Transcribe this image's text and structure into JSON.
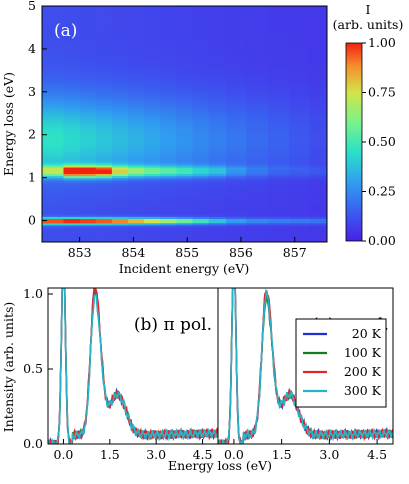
{
  "chart_data": [
    {
      "type": "heatmap",
      "panel_label": "(a)",
      "xlabel": "Incident energy (eV)",
      "ylabel": "Energy loss (eV)",
      "xlim": [
        852.3,
        857.6
      ],
      "ylim": [
        -0.5,
        5
      ],
      "xticks": [
        "853",
        "854",
        "855",
        "856",
        "857"
      ],
      "yticks": [
        "0",
        "1",
        "2",
        "3",
        "4",
        "5"
      ],
      "x_columns": [
        852.55,
        852.85,
        853.15,
        853.45,
        853.75,
        854.05,
        854.35,
        854.65,
        854.95,
        855.25,
        855.55,
        855.9,
        856.3,
        856.7,
        857.1,
        857.45
      ],
      "elastic_peak_intensity": [
        0.95,
        1.0,
        0.98,
        0.95,
        0.9,
        0.82,
        0.75,
        0.65,
        0.55,
        0.45,
        0.35,
        0.25,
        0.2,
        0.18,
        0.17,
        0.16
      ],
      "dd_peak_intensity": [
        0.55,
        1.0,
        1.0,
        0.92,
        0.65,
        0.52,
        0.45,
        0.42,
        0.38,
        0.32,
        0.28,
        0.18,
        0.12,
        0.08,
        0.07,
        0.06
      ],
      "colorbar": {
        "title": "I",
        "subtitle": "(arb. units)",
        "range": [
          0,
          1
        ],
        "ticks": [
          "1.00",
          "0.75",
          "0.50",
          "0.25",
          "0.00"
        ]
      }
    },
    {
      "type": "line",
      "panel_label": "(b) π pol.",
      "xlabel": "Energy loss (eV)",
      "ylabel": "Intensity (arb. units)",
      "xlim": [
        -0.5,
        5
      ],
      "ylim": [
        0,
        1.04
      ],
      "xticks": [
        "0.0",
        "1.5",
        "3.0",
        "4.5"
      ],
      "yticks": [
        "0.0",
        "0.5",
        "1.0"
      ],
      "series": [
        {
          "name": "20 K",
          "color": "#1f2fd6",
          "peak": 0.97
        },
        {
          "name": "100 K",
          "color": "#1a7a1a",
          "peak": 0.93
        },
        {
          "name": "200 K",
          "color": "#e0262a",
          "peak": 0.98
        },
        {
          "name": "300 K",
          "color": "#2ab3c8",
          "peak": 0.92
        }
      ]
    },
    {
      "type": "line",
      "panel_label": "(c) σ pol.",
      "xlabel": "Energy loss (eV)",
      "ylabel": "",
      "xlim": [
        -0.5,
        5
      ],
      "ylim": [
        0,
        1.04
      ],
      "xticks": [
        "0.0",
        "1.5",
        "3.0",
        "4.5"
      ],
      "series": [
        {
          "name": "20 K",
          "color": "#1f2fd6",
          "peak": 0.95
        },
        {
          "name": "100 K",
          "color": "#1a7a1a",
          "peak": 0.9
        },
        {
          "name": "200 K",
          "color": "#e0262a",
          "peak": 0.96
        },
        {
          "name": "300 K",
          "color": "#2ab3c8",
          "peak": 0.93
        }
      ],
      "legend": {
        "placement": "right",
        "entries": [
          "20 K",
          "100 K",
          "200 K",
          "300 K"
        ]
      }
    }
  ]
}
